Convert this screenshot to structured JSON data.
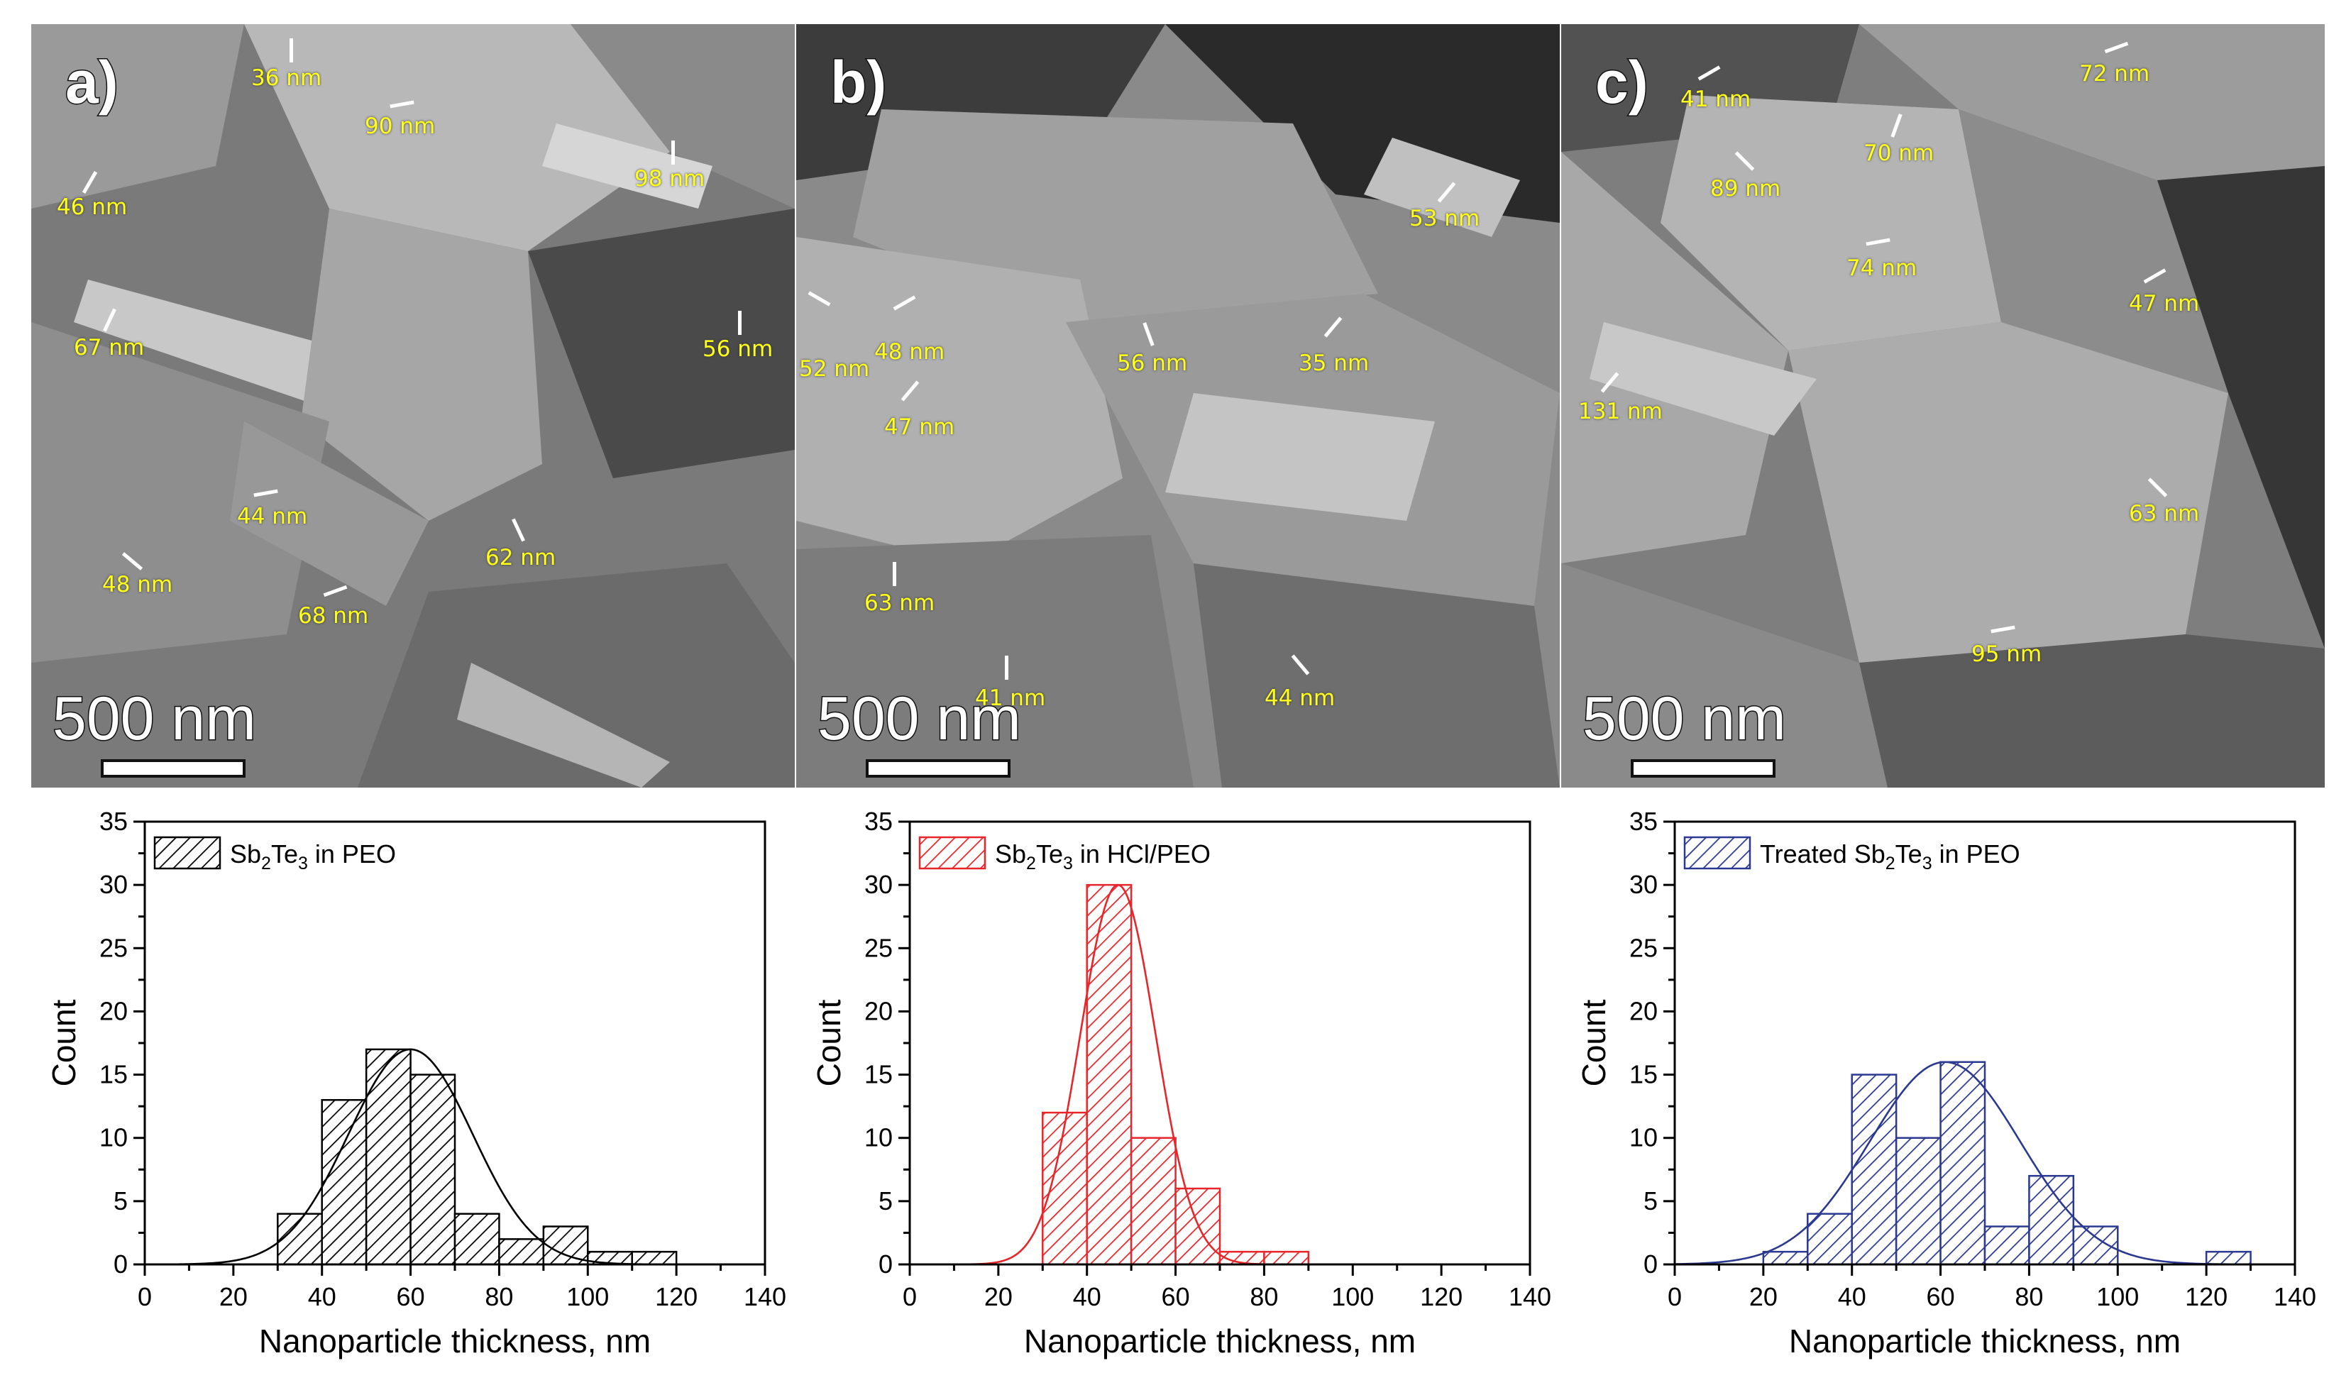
{
  "sem_panels": [
    {
      "letter": "a)",
      "scalebar": "500 nm",
      "labels": [
        "36 nm",
        "90 nm",
        "98 nm",
        "46 nm",
        "67 nm",
        "56 nm",
        "44 nm",
        "62 nm",
        "48 nm",
        "68 nm"
      ]
    },
    {
      "letter": "b)",
      "scalebar": "500 nm",
      "labels": [
        "53 nm",
        "52 nm",
        "48 nm",
        "56 nm",
        "35 nm",
        "47 nm",
        "63 nm",
        "41 nm",
        "44 nm"
      ]
    },
    {
      "letter": "c)",
      "scalebar": "500 nm",
      "labels": [
        "72 nm",
        "41 nm",
        "70 nm",
        "89 nm",
        "74 nm",
        "47 nm",
        "131 nm",
        "63 nm",
        "95 nm"
      ]
    }
  ],
  "chart_data": [
    {
      "type": "bar",
      "legend": {
        "pre": "Sb",
        "sub1": "2",
        "mid": "Te",
        "sub2": "3",
        "post": " in PEO"
      },
      "xlabel": "Nanoparticle thickness, nm",
      "ylabel": "Count",
      "xlim": [
        0,
        140
      ],
      "ylim": [
        0,
        35
      ],
      "xticks": [
        0,
        20,
        40,
        60,
        80,
        100,
        120,
        140
      ],
      "yticks": [
        0,
        5,
        10,
        15,
        20,
        25,
        30,
        35
      ],
      "bins": [
        [
          30,
          40,
          4
        ],
        [
          40,
          50,
          13
        ],
        [
          50,
          60,
          17
        ],
        [
          60,
          70,
          15
        ],
        [
          70,
          80,
          4
        ],
        [
          80,
          90,
          2
        ],
        [
          90,
          100,
          3
        ],
        [
          100,
          110,
          1
        ],
        [
          110,
          120,
          1
        ]
      ],
      "fit": {
        "type": "gaussian",
        "mean": 60,
        "sigma": 14,
        "amplitude": 17
      },
      "color": "#000000",
      "legend_position": "top-left"
    },
    {
      "type": "bar",
      "legend": {
        "pre": "Sb",
        "sub1": "2",
        "mid": "Te",
        "sub2": "3",
        "post": " in HCl/PEO"
      },
      "xlabel": "Nanoparticle thickness, nm",
      "ylabel": "Count",
      "xlim": [
        0,
        140
      ],
      "ylim": [
        0,
        35
      ],
      "xticks": [
        0,
        20,
        40,
        60,
        80,
        100,
        120,
        140
      ],
      "yticks": [
        0,
        5,
        10,
        15,
        20,
        25,
        30,
        35
      ],
      "bins": [
        [
          30,
          40,
          12
        ],
        [
          40,
          50,
          30
        ],
        [
          50,
          60,
          10
        ],
        [
          60,
          70,
          6
        ],
        [
          70,
          80,
          1
        ],
        [
          80,
          90,
          1
        ]
      ],
      "fit": {
        "type": "gaussian",
        "mean": 47,
        "sigma": 8.5,
        "amplitude": 30
      },
      "color": "#e8262a",
      "legend_position": "top-left"
    },
    {
      "type": "bar",
      "legend": {
        "pre": "Treated Sb",
        "sub1": "2",
        "mid": "Te",
        "sub2": "3",
        "post": " in PEO"
      },
      "xlabel": "Nanoparticle thickness, nm",
      "ylabel": "Count",
      "xlim": [
        0,
        140
      ],
      "ylim": [
        0,
        35
      ],
      "xticks": [
        0,
        20,
        40,
        60,
        80,
        100,
        120,
        140
      ],
      "yticks": [
        0,
        5,
        10,
        15,
        20,
        25,
        30,
        35
      ],
      "bins": [
        [
          20,
          30,
          1
        ],
        [
          30,
          40,
          4
        ],
        [
          40,
          50,
          15
        ],
        [
          50,
          60,
          10
        ],
        [
          60,
          70,
          16
        ],
        [
          70,
          80,
          3
        ],
        [
          80,
          90,
          7
        ],
        [
          90,
          100,
          3
        ],
        [
          120,
          130,
          1
        ]
      ],
      "fit": {
        "type": "gaussian",
        "mean": 61,
        "sigma": 17,
        "amplitude": 16
      },
      "color": "#2b3990",
      "legend_position": "top-left"
    }
  ]
}
